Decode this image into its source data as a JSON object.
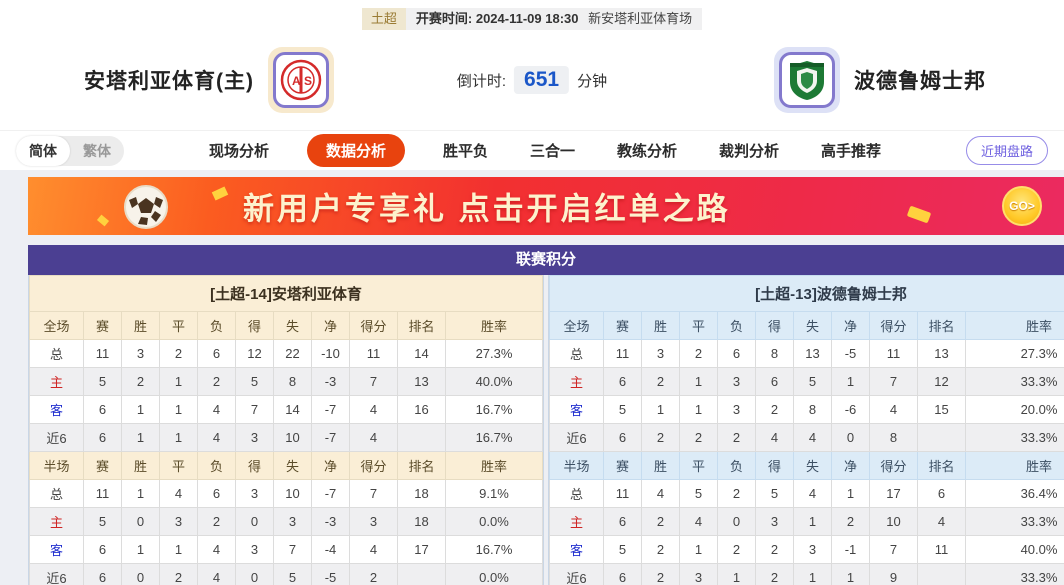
{
  "meta": {
    "league_tag": "土超",
    "kickoff_label": "开赛时间:",
    "kickoff_datetime": "2024-11-09 18:30",
    "venue": "新安塔利亚体育场"
  },
  "header": {
    "home_team": "安塔利亚体育(主)",
    "away_team": "波德鲁姆士邦",
    "countdown_label": "倒计时:",
    "countdown_value": "651",
    "countdown_unit": "分钟"
  },
  "nav": {
    "lang_simplified": "简体",
    "lang_traditional": "繁体",
    "tabs": [
      {
        "label": "现场分析",
        "active": false
      },
      {
        "label": "数据分析",
        "active": true
      },
      {
        "label": "胜平负",
        "active": false
      },
      {
        "label": "三合一",
        "active": false
      },
      {
        "label": "教练分析",
        "active": false
      },
      {
        "label": "裁判分析",
        "active": false
      },
      {
        "label": "高手推荐",
        "active": false
      }
    ],
    "recent_trend_button": "近期盘路"
  },
  "banner": {
    "text": "新用户专享礼  点击开启红单之路",
    "go_label": "GO>"
  },
  "league_table": {
    "title": "联赛积分",
    "columns_full": [
      "全场",
      "赛",
      "胜",
      "平",
      "负",
      "得",
      "失",
      "净",
      "得分",
      "排名",
      "胜率"
    ],
    "columns_half": [
      "半场",
      "赛",
      "胜",
      "平",
      "负",
      "得",
      "失",
      "净",
      "得分",
      "排名",
      "胜率"
    ],
    "home": {
      "section_title": "[土超-14]安塔利亚体育",
      "full_rows": [
        [
          "总",
          "11",
          "3",
          "2",
          "6",
          "12",
          "22",
          "-10",
          "11",
          "14",
          "27.3%"
        ],
        [
          "主",
          "5",
          "2",
          "1",
          "2",
          "5",
          "8",
          "-3",
          "7",
          "13",
          "40.0%"
        ],
        [
          "客",
          "6",
          "1",
          "1",
          "4",
          "7",
          "14",
          "-7",
          "4",
          "16",
          "16.7%"
        ],
        [
          "近6",
          "6",
          "1",
          "1",
          "4",
          "3",
          "10",
          "-7",
          "4",
          "",
          "16.7%"
        ]
      ],
      "half_rows": [
        [
          "总",
          "11",
          "1",
          "4",
          "6",
          "3",
          "10",
          "-7",
          "7",
          "18",
          "9.1%"
        ],
        [
          "主",
          "5",
          "0",
          "3",
          "2",
          "0",
          "3",
          "-3",
          "3",
          "18",
          "0.0%"
        ],
        [
          "客",
          "6",
          "1",
          "1",
          "4",
          "3",
          "7",
          "-4",
          "4",
          "17",
          "16.7%"
        ],
        [
          "近6",
          "6",
          "0",
          "2",
          "4",
          "0",
          "5",
          "-5",
          "2",
          "",
          "0.0%"
        ]
      ]
    },
    "away": {
      "section_title": "[土超-13]波德鲁姆士邦",
      "full_rows": [
        [
          "总",
          "11",
          "3",
          "2",
          "6",
          "8",
          "13",
          "-5",
          "11",
          "13",
          "27.3%"
        ],
        [
          "主",
          "6",
          "2",
          "1",
          "3",
          "6",
          "5",
          "1",
          "7",
          "12",
          "33.3%"
        ],
        [
          "客",
          "5",
          "1",
          "1",
          "3",
          "2",
          "8",
          "-6",
          "4",
          "15",
          "20.0%"
        ],
        [
          "近6",
          "6",
          "2",
          "2",
          "2",
          "4",
          "4",
          "0",
          "8",
          "",
          "33.3%"
        ]
      ],
      "half_rows": [
        [
          "总",
          "11",
          "4",
          "5",
          "2",
          "5",
          "4",
          "1",
          "17",
          "6",
          "36.4%"
        ],
        [
          "主",
          "6",
          "2",
          "4",
          "0",
          "3",
          "1",
          "2",
          "10",
          "4",
          "33.3%"
        ],
        [
          "客",
          "5",
          "2",
          "1",
          "2",
          "2",
          "3",
          "-1",
          "7",
          "11",
          "40.0%"
        ],
        [
          "近6",
          "6",
          "2",
          "3",
          "1",
          "2",
          "1",
          "1",
          "9",
          "",
          "33.3%"
        ]
      ]
    }
  },
  "colors": {
    "active_tab": "#e8430e",
    "table_header_purple": "#4b3f92",
    "home_section_bg": "#faeed6",
    "away_section_bg": "#dcebf7",
    "home_row_label_red": "#cf2424",
    "away_row_label_blue": "#2330cf",
    "countdown_blue": "#1b57c8",
    "banner_text": "#fdf2cd",
    "recent_btn_purple": "#6f61e0"
  }
}
